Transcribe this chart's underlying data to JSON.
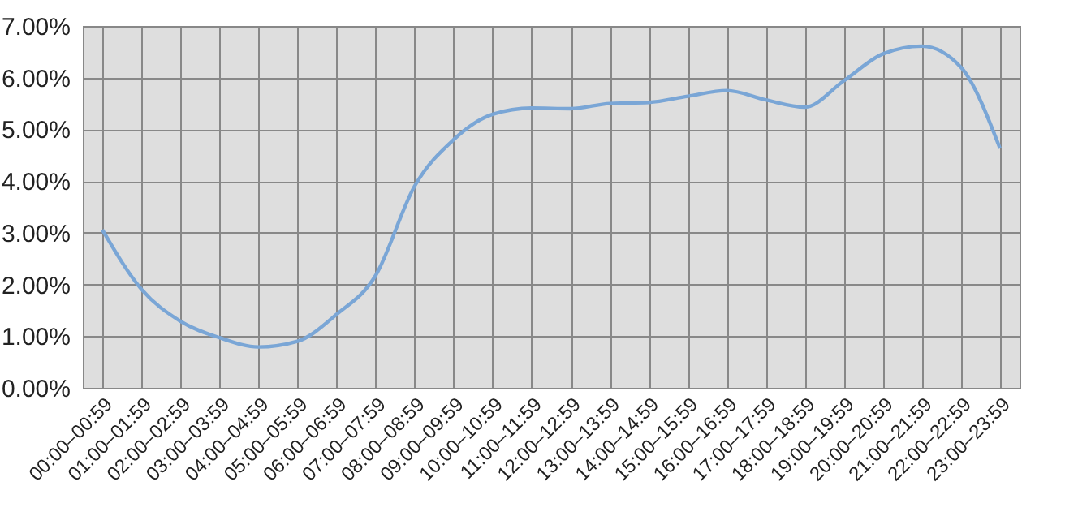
{
  "chart_data": {
    "type": "line",
    "categories": [
      "00:00–00:59",
      "01:00–01:59",
      "02:00–02:59",
      "03:00–03:59",
      "04:00–04:59",
      "05:00–05:59",
      "06:00–06:59",
      "07:00–07:59",
      "08:00–08:59",
      "09:00–09:59",
      "10:00–10:59",
      "11:00–11:59",
      "12:00–12:59",
      "13:00–13:59",
      "14:00–14:59",
      "15:00–15:59",
      "16:00–16:59",
      "17:00–17:59",
      "18:00–18:59",
      "19:00–19:59",
      "20:00–20:59",
      "21:00–21:59",
      "22:00–22:59",
      "23:00–23:59"
    ],
    "series": [
      {
        "color": "#7aa6d6",
        "values": [
          3.06,
          1.91,
          1.29,
          0.97,
          0.79,
          0.9,
          1.42,
          2.17,
          3.9,
          4.8,
          5.29,
          5.41,
          5.4,
          5.5,
          5.52,
          5.64,
          5.75,
          5.57,
          5.43,
          5.94,
          6.46,
          6.61,
          6.2,
          4.63
        ]
      }
    ],
    "ylim": [
      0,
      7
    ],
    "yticks": [
      {
        "value": 0,
        "label": "0.00%"
      },
      {
        "value": 1,
        "label": "1.00%"
      },
      {
        "value": 2,
        "label": "2.00%"
      },
      {
        "value": 3,
        "label": "3.00%"
      },
      {
        "value": 4,
        "label": "4.00%"
      },
      {
        "value": 5,
        "label": "5.00%"
      },
      {
        "value": 6,
        "label": "6.00%"
      },
      {
        "value": 7,
        "label": "7.00%"
      }
    ],
    "grid": true,
    "marker": "none",
    "line_style": "solid"
  }
}
